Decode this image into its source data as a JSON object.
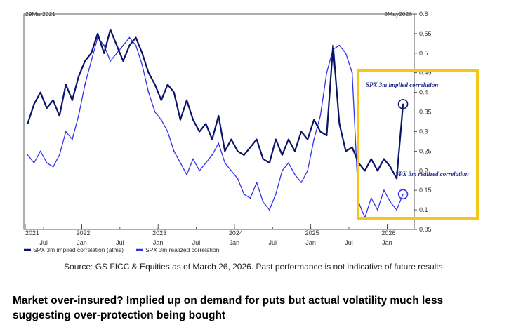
{
  "chart_data": {
    "type": "line",
    "title": "",
    "xlabel": "",
    "ylabel": "",
    "date_range": {
      "start_label": "29Mar2021",
      "end_label": "8May2026"
    },
    "ylim": [
      0.05,
      0.6
    ],
    "y_ticks": [
      0.05,
      0.1,
      0.15,
      0.2,
      0.25,
      0.3,
      0.35,
      0.4,
      0.45,
      0.5,
      0.55,
      0.6
    ],
    "y_tick_labels": [
      "0.05",
      "0.1",
      "0.15",
      "0.2",
      "0.25",
      "0.3",
      "0.35",
      "0.4",
      "0.45",
      "0.5",
      "0.55",
      "0.6"
    ],
    "x_ticks_month": [
      {
        "label": "Jul",
        "date": "2021-07"
      },
      {
        "label": "Jan",
        "date": "2022-01"
      },
      {
        "label": "Jul",
        "date": "2022-07"
      },
      {
        "label": "Jan",
        "date": "2023-01"
      },
      {
        "label": "Jul",
        "date": "2023-07"
      },
      {
        "label": "Jan",
        "date": "2024-01"
      },
      {
        "label": "Jul",
        "date": "2024-07"
      },
      {
        "label": "Jan",
        "date": "2025-01"
      },
      {
        "label": "Jul",
        "date": "2025-07"
      },
      {
        "label": "Jan",
        "date": "2026-01"
      }
    ],
    "x_ticks_year": [
      {
        "label": "2021",
        "date": "2021-03"
      },
      {
        "label": "2022",
        "date": "2022-01"
      },
      {
        "label": "2023",
        "date": "2023-01"
      },
      {
        "label": "2024",
        "date": "2024-01"
      },
      {
        "label": "2025",
        "date": "2025-01"
      },
      {
        "label": "2026",
        "date": "2026-01"
      }
    ],
    "grid": false,
    "legend_position": "bottom-left",
    "series": [
      {
        "name": "SPX 3m implied correlation (atms)",
        "color": "#0b1566",
        "points": [
          [
            "2021-04",
            0.32
          ],
          [
            "2021-05",
            0.37
          ],
          [
            "2021-06",
            0.4
          ],
          [
            "2021-07",
            0.36
          ],
          [
            "2021-08",
            0.38
          ],
          [
            "2021-09",
            0.34
          ],
          [
            "2021-10",
            0.42
          ],
          [
            "2021-11",
            0.38
          ],
          [
            "2021-12",
            0.44
          ],
          [
            "2022-01",
            0.48
          ],
          [
            "2022-02",
            0.5
          ],
          [
            "2022-03",
            0.55
          ],
          [
            "2022-04",
            0.5
          ],
          [
            "2022-05",
            0.56
          ],
          [
            "2022-06",
            0.52
          ],
          [
            "2022-07",
            0.48
          ],
          [
            "2022-08",
            0.52
          ],
          [
            "2022-09",
            0.54
          ],
          [
            "2022-10",
            0.5
          ],
          [
            "2022-11",
            0.45
          ],
          [
            "2022-12",
            0.42
          ],
          [
            "2023-01",
            0.38
          ],
          [
            "2023-02",
            0.42
          ],
          [
            "2023-03",
            0.4
          ],
          [
            "2023-04",
            0.33
          ],
          [
            "2023-05",
            0.38
          ],
          [
            "2023-06",
            0.33
          ],
          [
            "2023-07",
            0.3
          ],
          [
            "2023-08",
            0.32
          ],
          [
            "2023-09",
            0.28
          ],
          [
            "2023-10",
            0.34
          ],
          [
            "2023-11",
            0.25
          ],
          [
            "2023-12",
            0.28
          ],
          [
            "2024-01",
            0.25
          ],
          [
            "2024-02",
            0.24
          ],
          [
            "2024-03",
            0.26
          ],
          [
            "2024-04",
            0.28
          ],
          [
            "2024-05",
            0.23
          ],
          [
            "2024-06",
            0.22
          ],
          [
            "2024-07",
            0.28
          ],
          [
            "2024-08",
            0.24
          ],
          [
            "2024-09",
            0.28
          ],
          [
            "2024-10",
            0.25
          ],
          [
            "2024-11",
            0.3
          ],
          [
            "2024-12",
            0.28
          ],
          [
            "2025-01",
            0.33
          ],
          [
            "2025-02",
            0.3
          ],
          [
            "2025-03",
            0.29
          ],
          [
            "2025-04",
            0.52
          ],
          [
            "2025-05",
            0.32
          ],
          [
            "2025-06",
            0.25
          ],
          [
            "2025-07",
            0.26
          ],
          [
            "2025-08",
            0.22
          ],
          [
            "2025-09",
            0.2
          ],
          [
            "2025-10",
            0.23
          ],
          [
            "2025-11",
            0.2
          ],
          [
            "2025-12",
            0.23
          ],
          [
            "2026-01",
            0.21
          ],
          [
            "2026-02",
            0.18
          ],
          [
            "2026-03",
            0.37
          ]
        ]
      },
      {
        "name": "SPX 3m realized correlation",
        "color": "#3333ee",
        "points": [
          [
            "2021-04",
            0.24
          ],
          [
            "2021-05",
            0.22
          ],
          [
            "2021-06",
            0.25
          ],
          [
            "2021-07",
            0.22
          ],
          [
            "2021-08",
            0.21
          ],
          [
            "2021-09",
            0.24
          ],
          [
            "2021-10",
            0.3
          ],
          [
            "2021-11",
            0.28
          ],
          [
            "2021-12",
            0.34
          ],
          [
            "2022-01",
            0.42
          ],
          [
            "2022-02",
            0.48
          ],
          [
            "2022-03",
            0.54
          ],
          [
            "2022-04",
            0.52
          ],
          [
            "2022-05",
            0.48
          ],
          [
            "2022-06",
            0.5
          ],
          [
            "2022-07",
            0.52
          ],
          [
            "2022-08",
            0.54
          ],
          [
            "2022-09",
            0.52
          ],
          [
            "2022-10",
            0.47
          ],
          [
            "2022-11",
            0.4
          ],
          [
            "2022-12",
            0.35
          ],
          [
            "2023-01",
            0.33
          ],
          [
            "2023-02",
            0.3
          ],
          [
            "2023-03",
            0.25
          ],
          [
            "2023-04",
            0.22
          ],
          [
            "2023-05",
            0.19
          ],
          [
            "2023-06",
            0.23
          ],
          [
            "2023-07",
            0.2
          ],
          [
            "2023-08",
            0.22
          ],
          [
            "2023-09",
            0.24
          ],
          [
            "2023-10",
            0.27
          ],
          [
            "2023-11",
            0.22
          ],
          [
            "2023-12",
            0.2
          ],
          [
            "2024-01",
            0.18
          ],
          [
            "2024-02",
            0.14
          ],
          [
            "2024-03",
            0.13
          ],
          [
            "2024-04",
            0.17
          ],
          [
            "2024-05",
            0.12
          ],
          [
            "2024-06",
            0.1
          ],
          [
            "2024-07",
            0.14
          ],
          [
            "2024-08",
            0.2
          ],
          [
            "2024-09",
            0.22
          ],
          [
            "2024-10",
            0.19
          ],
          [
            "2024-11",
            0.17
          ],
          [
            "2024-12",
            0.2
          ],
          [
            "2025-01",
            0.28
          ],
          [
            "2025-02",
            0.34
          ],
          [
            "2025-03",
            0.45
          ],
          [
            "2025-04",
            0.51
          ],
          [
            "2025-05",
            0.52
          ],
          [
            "2025-06",
            0.5
          ],
          [
            "2025-07",
            0.45
          ],
          [
            "2025-08",
            0.12
          ],
          [
            "2025-09",
            0.08
          ],
          [
            "2025-10",
            0.13
          ],
          [
            "2025-11",
            0.1
          ],
          [
            "2025-12",
            0.15
          ],
          [
            "2026-01",
            0.12
          ],
          [
            "2026-02",
            0.1
          ],
          [
            "2026-03",
            0.14
          ]
        ]
      }
    ],
    "annotations": [
      {
        "text": "SPX 3m implied correlation",
        "series": 0
      },
      {
        "text": "SPX 3m realized correlation",
        "series": 1
      }
    ],
    "highlight_color": "#f5c518"
  },
  "source_text": "Source: GS FICC & Equities as of  March 26, 2026.  Past performance is not indicative of future results.",
  "caption_text": "Market over-insured? Implied up on demand for puts but actual volatility much less suggesting over-protection being bought"
}
